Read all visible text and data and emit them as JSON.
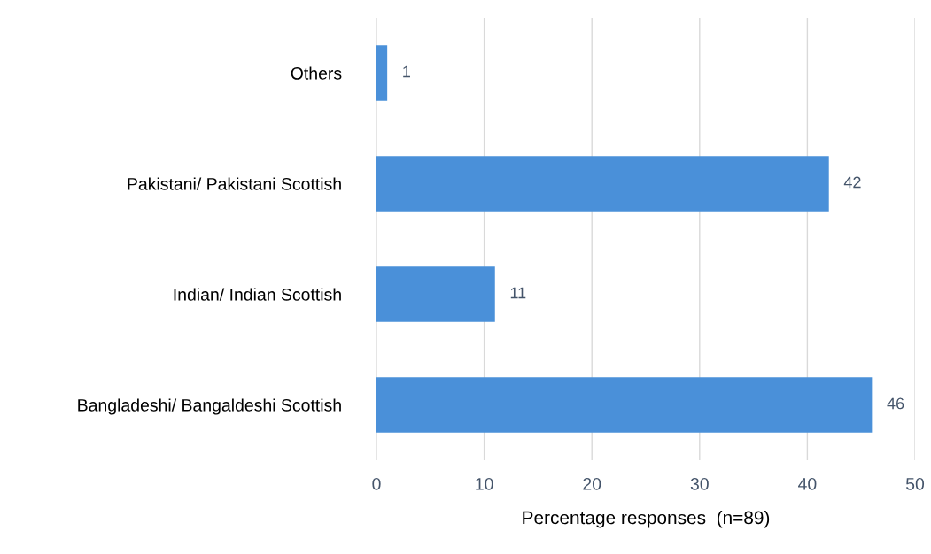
{
  "chart_data": {
    "type": "bar",
    "orientation": "horizontal",
    "categories": [
      "Others",
      "Pakistani/ Pakistani Scottish",
      "Indian/ Indian Scottish",
      "Bangladeshi/ Bangaldeshi Scottish"
    ],
    "values": [
      1,
      42,
      11,
      46
    ],
    "color": "#4a90d9",
    "xlabel": "Percentage responses  (n=89)",
    "xlim": [
      0,
      50
    ],
    "xticks": [
      0,
      10,
      20,
      30,
      40,
      50
    ],
    "grid": "x",
    "data_labels": true,
    "legend": false
  }
}
